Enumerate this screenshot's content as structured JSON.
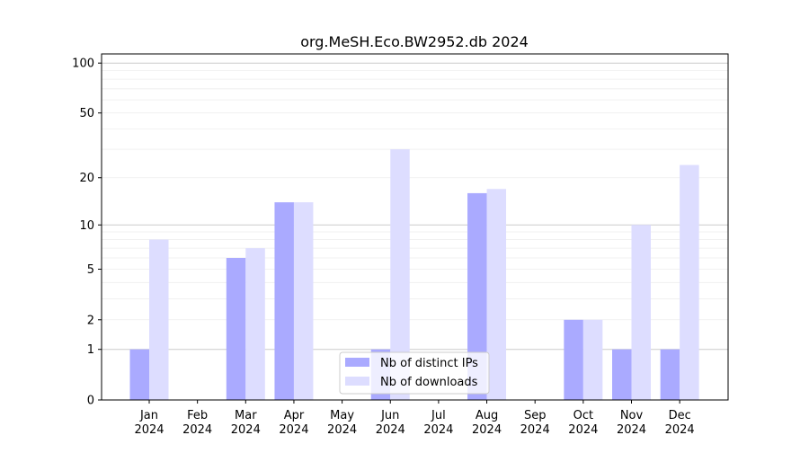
{
  "chart_data": {
    "type": "bar",
    "title": "org.MeSH.Eco.BW2952.db 2024",
    "xlabel": "",
    "ylabel": "",
    "yscale": "symlog (log10(1+y))",
    "ylim": [
      0,
      113
    ],
    "yticks": [
      0,
      1,
      2,
      5,
      10,
      20,
      50,
      100
    ],
    "categories": [
      "Jan\n2024",
      "Feb\n2024",
      "Mar\n2024",
      "Apr\n2024",
      "May\n2024",
      "Jun\n2024",
      "Jul\n2024",
      "Aug\n2024",
      "Sep\n2024",
      "Oct\n2024",
      "Nov\n2024",
      "Dec\n2024"
    ],
    "series": [
      {
        "name": "Nb of distinct IPs",
        "color": "#aaaaff",
        "values": [
          1,
          0,
          6,
          14,
          0,
          1,
          0,
          16,
          0,
          2,
          1,
          1
        ]
      },
      {
        "name": "Nb of downloads",
        "color": "#ddddff",
        "values": [
          8,
          0,
          7,
          14,
          0,
          30,
          0,
          17,
          0,
          2,
          10,
          24
        ]
      }
    ],
    "grid": true,
    "legend_position": "lower-center"
  }
}
